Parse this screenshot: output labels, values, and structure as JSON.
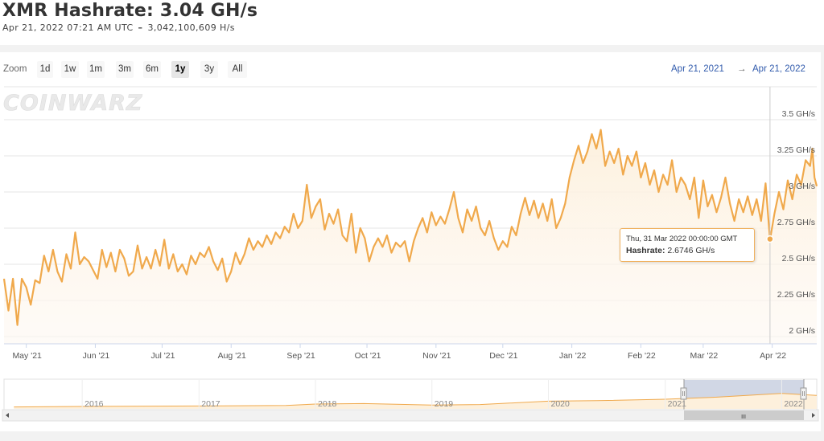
{
  "header": {
    "title": "XMR Hashrate: 3.04 GH/s",
    "timestamp": "Apr 21, 2022 07:21 AM UTC",
    "separator": "–",
    "hashrate_raw": "3,042,100,609 H/s"
  },
  "toolbar": {
    "zoom_label": "Zoom",
    "buttons": [
      "1d",
      "1w",
      "1m",
      "3m",
      "6m",
      "1y",
      "3y",
      "All"
    ],
    "active": "1y",
    "range_from": "Apr 21, 2021",
    "range_sep": "→",
    "range_to": "Apr 21, 2022"
  },
  "watermark": "COINWARZ",
  "tooltip": {
    "date": "Thu, 31 Mar 2022 00:00:00 GMT",
    "series_label": "Hashrate:",
    "value": "2.6746 GH/s"
  },
  "navigator": {
    "year_labels": [
      "2016",
      "2017",
      "2018",
      "2019",
      "2020",
      "2021",
      "2022"
    ],
    "scroll_grip": "III"
  },
  "colors": {
    "line": "#f0a94c",
    "fill": "#fdf3e6",
    "grid": "#e6e6e6",
    "range_text": "#335cad"
  },
  "chart_data": {
    "type": "area",
    "title": "XMR Hashrate: 3.04 GH/s",
    "ylabel": "",
    "ylim": [
      2.0,
      3.6
    ],
    "y_ticks": [
      "2 GH/s",
      "2.25 GH/s",
      "2.5 GH/s",
      "2.75 GH/s",
      "3 GH/s",
      "3.25 GH/s",
      "3.5 GH/s"
    ],
    "x_ticks": [
      "May '21",
      "Jun '21",
      "Jul '21",
      "Aug '21",
      "Sep '21",
      "Oct '21",
      "Nov '21",
      "Dec '21",
      "Jan '22",
      "Feb '22",
      "Mar '22",
      "Apr '22"
    ],
    "x_range": [
      "2021-04-21",
      "2022-04-21"
    ],
    "grid": true,
    "series": [
      {
        "name": "Hashrate",
        "unit": "GH/s",
        "points": [
          [
            "2021-04-21",
            2.4
          ],
          [
            "2021-04-23",
            2.18
          ],
          [
            "2021-04-25",
            2.4
          ],
          [
            "2021-04-27",
            2.08
          ],
          [
            "2021-04-29",
            2.4
          ],
          [
            "2021-05-01",
            2.34
          ],
          [
            "2021-05-03",
            2.22
          ],
          [
            "2021-05-05",
            2.39
          ],
          [
            "2021-05-07",
            2.37
          ],
          [
            "2021-05-09",
            2.56
          ],
          [
            "2021-05-11",
            2.45
          ],
          [
            "2021-05-13",
            2.6
          ],
          [
            "2021-05-15",
            2.45
          ],
          [
            "2021-05-17",
            2.38
          ],
          [
            "2021-05-19",
            2.57
          ],
          [
            "2021-05-21",
            2.47
          ],
          [
            "2021-05-23",
            2.72
          ],
          [
            "2021-05-25",
            2.5
          ],
          [
            "2021-05-27",
            2.55
          ],
          [
            "2021-05-29",
            2.52
          ],
          [
            "2021-05-31",
            2.46
          ],
          [
            "2021-06-02",
            2.4
          ],
          [
            "2021-06-04",
            2.6
          ],
          [
            "2021-06-06",
            2.48
          ],
          [
            "2021-06-08",
            2.58
          ],
          [
            "2021-06-10",
            2.45
          ],
          [
            "2021-06-12",
            2.6
          ],
          [
            "2021-06-14",
            2.54
          ],
          [
            "2021-06-16",
            2.42
          ],
          [
            "2021-06-18",
            2.45
          ],
          [
            "2021-06-20",
            2.63
          ],
          [
            "2021-06-22",
            2.47
          ],
          [
            "2021-06-24",
            2.55
          ],
          [
            "2021-06-26",
            2.47
          ],
          [
            "2021-06-28",
            2.6
          ],
          [
            "2021-06-30",
            2.49
          ],
          [
            "2021-07-02",
            2.67
          ],
          [
            "2021-07-04",
            2.47
          ],
          [
            "2021-07-06",
            2.57
          ],
          [
            "2021-07-08",
            2.45
          ],
          [
            "2021-07-10",
            2.5
          ],
          [
            "2021-07-12",
            2.43
          ],
          [
            "2021-07-14",
            2.56
          ],
          [
            "2021-07-16",
            2.5
          ],
          [
            "2021-07-18",
            2.58
          ],
          [
            "2021-07-20",
            2.55
          ],
          [
            "2021-07-22",
            2.62
          ],
          [
            "2021-07-24",
            2.52
          ],
          [
            "2021-07-26",
            2.46
          ],
          [
            "2021-07-28",
            2.54
          ],
          [
            "2021-07-30",
            2.38
          ],
          [
            "2021-08-01",
            2.45
          ],
          [
            "2021-08-03",
            2.58
          ],
          [
            "2021-08-05",
            2.5
          ],
          [
            "2021-08-07",
            2.57
          ],
          [
            "2021-08-09",
            2.68
          ],
          [
            "2021-08-11",
            2.6
          ],
          [
            "2021-08-13",
            2.66
          ],
          [
            "2021-08-15",
            2.62
          ],
          [
            "2021-08-17",
            2.7
          ],
          [
            "2021-08-19",
            2.64
          ],
          [
            "2021-08-21",
            2.72
          ],
          [
            "2021-08-23",
            2.68
          ],
          [
            "2021-08-25",
            2.76
          ],
          [
            "2021-08-27",
            2.72
          ],
          [
            "2021-08-29",
            2.85
          ],
          [
            "2021-08-31",
            2.75
          ],
          [
            "2021-09-02",
            2.8
          ],
          [
            "2021-09-04",
            3.05
          ],
          [
            "2021-09-06",
            2.82
          ],
          [
            "2021-09-08",
            2.9
          ],
          [
            "2021-09-10",
            2.95
          ],
          [
            "2021-09-12",
            2.74
          ],
          [
            "2021-09-14",
            2.85
          ],
          [
            "2021-09-16",
            2.78
          ],
          [
            "2021-09-18",
            2.88
          ],
          [
            "2021-09-20",
            2.7
          ],
          [
            "2021-09-22",
            2.66
          ],
          [
            "2021-09-24",
            2.85
          ],
          [
            "2021-09-26",
            2.58
          ],
          [
            "2021-09-28",
            2.75
          ],
          [
            "2021-09-30",
            2.68
          ],
          [
            "2021-10-02",
            2.52
          ],
          [
            "2021-10-04",
            2.62
          ],
          [
            "2021-10-06",
            2.68
          ],
          [
            "2021-10-08",
            2.62
          ],
          [
            "2021-10-10",
            2.7
          ],
          [
            "2021-10-12",
            2.58
          ],
          [
            "2021-10-14",
            2.65
          ],
          [
            "2021-10-16",
            2.62
          ],
          [
            "2021-10-18",
            2.66
          ],
          [
            "2021-10-20",
            2.52
          ],
          [
            "2021-10-22",
            2.66
          ],
          [
            "2021-10-24",
            2.75
          ],
          [
            "2021-10-26",
            2.82
          ],
          [
            "2021-10-28",
            2.72
          ],
          [
            "2021-10-30",
            2.86
          ],
          [
            "2021-11-01",
            2.77
          ],
          [
            "2021-11-03",
            2.83
          ],
          [
            "2021-11-05",
            2.78
          ],
          [
            "2021-11-07",
            2.88
          ],
          [
            "2021-11-09",
            3.0
          ],
          [
            "2021-11-11",
            2.82
          ],
          [
            "2021-11-13",
            2.72
          ],
          [
            "2021-11-15",
            2.88
          ],
          [
            "2021-11-17",
            2.8
          ],
          [
            "2021-11-19",
            2.9
          ],
          [
            "2021-11-21",
            2.75
          ],
          [
            "2021-11-23",
            2.7
          ],
          [
            "2021-11-25",
            2.8
          ],
          [
            "2021-11-27",
            2.68
          ],
          [
            "2021-11-29",
            2.6
          ],
          [
            "2021-12-01",
            2.66
          ],
          [
            "2021-12-03",
            2.62
          ],
          [
            "2021-12-05",
            2.76
          ],
          [
            "2021-12-07",
            2.7
          ],
          [
            "2021-12-09",
            2.85
          ],
          [
            "2021-12-11",
            2.96
          ],
          [
            "2021-12-13",
            2.84
          ],
          [
            "2021-12-15",
            2.94
          ],
          [
            "2021-12-17",
            2.82
          ],
          [
            "2021-12-19",
            2.92
          ],
          [
            "2021-12-21",
            2.8
          ],
          [
            "2021-12-23",
            2.95
          ],
          [
            "2021-12-25",
            2.75
          ],
          [
            "2021-12-27",
            2.82
          ],
          [
            "2021-12-29",
            2.92
          ],
          [
            "2021-12-31",
            3.1
          ],
          [
            "2022-01-02",
            3.22
          ],
          [
            "2022-01-04",
            3.32
          ],
          [
            "2022-01-06",
            3.2
          ],
          [
            "2022-01-08",
            3.28
          ],
          [
            "2022-01-10",
            3.4
          ],
          [
            "2022-01-12",
            3.3
          ],
          [
            "2022-01-14",
            3.43
          ],
          [
            "2022-01-16",
            3.18
          ],
          [
            "2022-01-18",
            3.28
          ],
          [
            "2022-01-20",
            3.2
          ],
          [
            "2022-01-22",
            3.3
          ],
          [
            "2022-01-24",
            3.12
          ],
          [
            "2022-01-26",
            3.25
          ],
          [
            "2022-01-28",
            3.18
          ],
          [
            "2022-01-30",
            3.28
          ],
          [
            "2022-02-01",
            3.1
          ],
          [
            "2022-02-03",
            3.2
          ],
          [
            "2022-02-05",
            3.05
          ],
          [
            "2022-02-07",
            3.15
          ],
          [
            "2022-02-09",
            3.0
          ],
          [
            "2022-02-11",
            3.12
          ],
          [
            "2022-02-13",
            3.05
          ],
          [
            "2022-02-15",
            3.22
          ],
          [
            "2022-02-17",
            3.0
          ],
          [
            "2022-02-19",
            3.1
          ],
          [
            "2022-02-21",
            3.05
          ],
          [
            "2022-02-23",
            2.95
          ],
          [
            "2022-02-25",
            3.1
          ],
          [
            "2022-02-27",
            2.82
          ],
          [
            "2022-03-01",
            3.08
          ],
          [
            "2022-03-03",
            2.9
          ],
          [
            "2022-03-05",
            2.98
          ],
          [
            "2022-03-07",
            2.86
          ],
          [
            "2022-03-09",
            2.96
          ],
          [
            "2022-03-11",
            3.1
          ],
          [
            "2022-03-13",
            2.92
          ],
          [
            "2022-03-15",
            2.8
          ],
          [
            "2022-03-17",
            2.95
          ],
          [
            "2022-03-19",
            2.86
          ],
          [
            "2022-03-21",
            2.97
          ],
          [
            "2022-03-23",
            2.84
          ],
          [
            "2022-03-25",
            2.95
          ],
          [
            "2022-03-27",
            2.8
          ],
          [
            "2022-03-29",
            3.06
          ],
          [
            "2022-03-31",
            2.67
          ],
          [
            "2022-04-02",
            2.85
          ],
          [
            "2022-04-04",
            3.0
          ],
          [
            "2022-04-06",
            2.88
          ],
          [
            "2022-04-08",
            3.08
          ],
          [
            "2022-04-10",
            2.95
          ],
          [
            "2022-04-12",
            3.12
          ],
          [
            "2022-04-14",
            3.05
          ],
          [
            "2022-04-16",
            3.22
          ],
          [
            "2022-04-18",
            3.18
          ],
          [
            "2022-04-19",
            3.3
          ],
          [
            "2022-04-20",
            3.1
          ],
          [
            "2022-04-21",
            3.04
          ]
        ]
      }
    ],
    "highlight": {
      "date": "2022-03-31",
      "value": 2.6746
    },
    "navigator_series": [
      [
        "2015-06-01",
        1.2
      ],
      [
        "2016-01-01",
        1.25
      ],
      [
        "2017-01-01",
        1.3
      ],
      [
        "2017-10-01",
        1.35
      ],
      [
        "2018-01-01",
        1.5
      ],
      [
        "2018-06-01",
        1.55
      ],
      [
        "2019-01-01",
        1.4
      ],
      [
        "2019-06-01",
        1.45
      ],
      [
        "2020-01-01",
        1.8
      ],
      [
        "2020-06-01",
        1.85
      ],
      [
        "2021-01-01",
        2.0
      ],
      [
        "2021-06-01",
        2.2
      ],
      [
        "2022-01-01",
        2.6
      ],
      [
        "2022-04-21",
        2.4
      ]
    ]
  }
}
